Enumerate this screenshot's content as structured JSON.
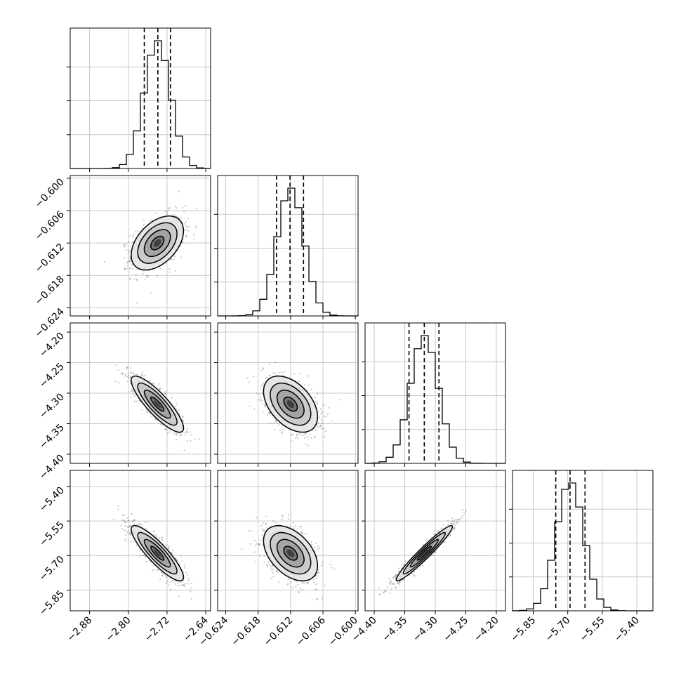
{
  "chart_data": {
    "type": "corner",
    "parameters": [
      {
        "range": [
          -2.92,
          -2.63
        ],
        "mean": -2.74,
        "sigma": 0.027,
        "quantiles": [
          -2.767,
          -2.739,
          -2.713
        ],
        "tick_values": [
          -2.88,
          -2.8,
          -2.72,
          -2.64
        ],
        "tick_labels": [
          "−2.88",
          "−2.80",
          "−2.72",
          "−2.64"
        ]
      },
      {
        "range": [
          -0.6255,
          -0.5995
        ],
        "mean": -0.612,
        "sigma": 0.0025,
        "quantiles": [
          -0.6146,
          -0.6121,
          -0.6096
        ],
        "tick_values": [
          -0.624,
          -0.618,
          -0.612,
          -0.606,
          -0.6
        ],
        "tick_labels": [
          "−0.624",
          "−0.618",
          "−0.612",
          "−0.606",
          "−0.600"
        ]
      },
      {
        "range": [
          -4.415,
          -4.185
        ],
        "mean": -4.318,
        "sigma": 0.023,
        "quantiles": [
          -4.343,
          -4.318,
          -4.294
        ],
        "tick_values": [
          -4.4,
          -4.35,
          -4.3,
          -4.25,
          -4.2
        ],
        "tick_labels": [
          "−4.40",
          "−4.35",
          "−4.30",
          "−4.25",
          "−4.20"
        ]
      },
      {
        "range": [
          -5.94,
          -5.33
        ],
        "mean": -5.69,
        "sigma": 0.06,
        "quantiles": [
          -5.752,
          -5.69,
          -5.625
        ],
        "tick_values": [
          -5.85,
          -5.7,
          -5.55,
          -5.4
        ],
        "tick_labels": [
          "−5.85",
          "−5.70",
          "−5.55",
          "−5.40"
        ]
      }
    ],
    "correlations": [
      [
        0,
        1,
        0.45
      ],
      [
        0,
        2,
        -0.85
      ],
      [
        0,
        3,
        -0.87
      ],
      [
        1,
        2,
        -0.45
      ],
      [
        1,
        3,
        -0.45
      ],
      [
        2,
        3,
        0.96
      ]
    ],
    "histogram_bins": 20,
    "contour_levels_sigma": [
      0.5,
      1.0,
      1.5,
      2.0
    ],
    "grid": true,
    "legend": "none",
    "title": "",
    "xlabel": "",
    "ylabel": ""
  }
}
